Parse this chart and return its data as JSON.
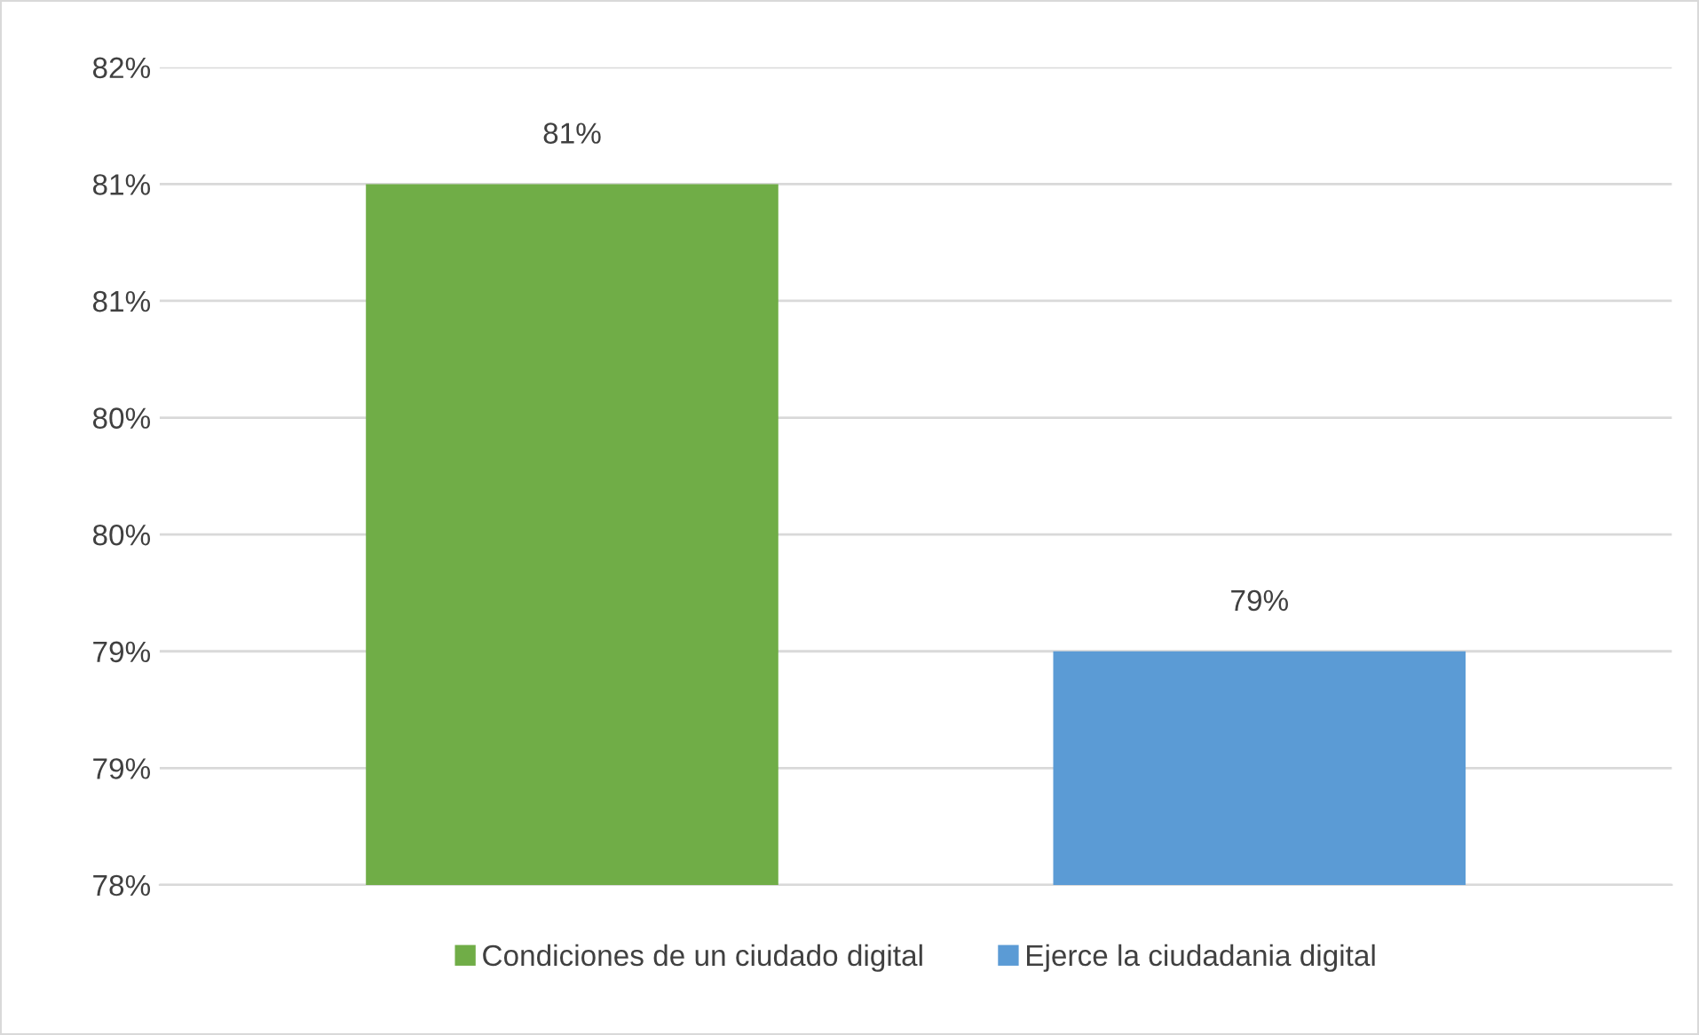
{
  "chart_data": {
    "type": "bar",
    "categories": [
      null,
      null
    ],
    "series": [
      {
        "name": "Condiciones de un ciudado digital",
        "color": "#70ad47",
        "values": [
          81,
          null
        ],
        "value_labels": [
          "81%",
          null
        ]
      },
      {
        "name": "Ejerce la ciudadania digital",
        "color": "#5b9bd5",
        "values": [
          null,
          79
        ],
        "value_labels": [
          null,
          "79%"
        ]
      }
    ],
    "ylim": [
      78,
      81.5
    ],
    "yticks": [
      {
        "value": 78,
        "label": "78%"
      },
      {
        "value": 78.5,
        "label": "79%"
      },
      {
        "value": 79,
        "label": "79%"
      },
      {
        "value": 79.5,
        "label": "80%"
      },
      {
        "value": 80,
        "label": "80%"
      },
      {
        "value": 80.5,
        "label": "81%"
      },
      {
        "value": 81,
        "label": "81%"
      },
      {
        "value": 81.5,
        "label": "82%"
      }
    ],
    "grid": "y",
    "legend": "bottom",
    "tick_labels": "y"
  }
}
